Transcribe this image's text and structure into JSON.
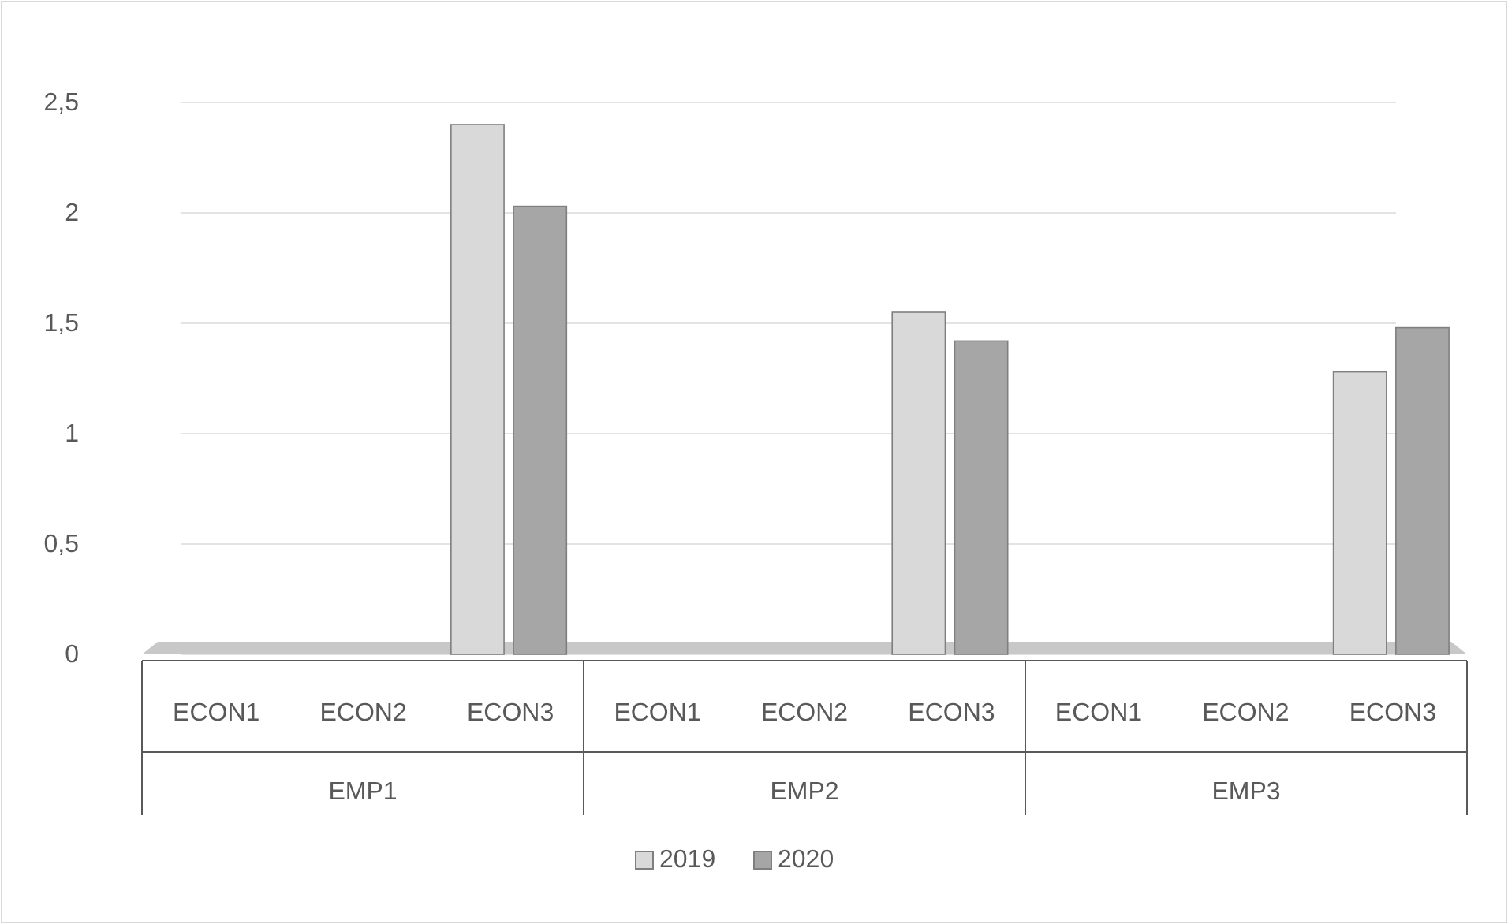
{
  "chart_data": {
    "type": "bar",
    "categories": [
      "ECON1",
      "ECON2",
      "ECON3",
      "ECON1",
      "ECON2",
      "ECON3",
      "ECON1",
      "ECON2",
      "ECON3"
    ],
    "series": [
      {
        "name": "2019",
        "color": "#d9d9d9",
        "values": [
          0,
          0,
          2.4,
          0,
          0,
          1.55,
          0,
          0,
          1.28
        ]
      },
      {
        "name": "2020",
        "color": "#a6a6a6",
        "values": [
          0,
          0,
          2.03,
          0,
          0,
          1.42,
          0,
          0,
          1.48
        ]
      }
    ],
    "ylim": [
      0,
      2.5
    ],
    "yticks": [
      0,
      {
        "value": 0.5,
        "label": "0,5"
      },
      1,
      {
        "value": 1.5,
        "label": "1,5"
      },
      2,
      {
        "value": 2.5,
        "label": "2,5"
      }
    ],
    "grid": "y",
    "legend": "bottom",
    "annotations": [
      "EMP1",
      "EMP2",
      "EMP3"
    ]
  }
}
